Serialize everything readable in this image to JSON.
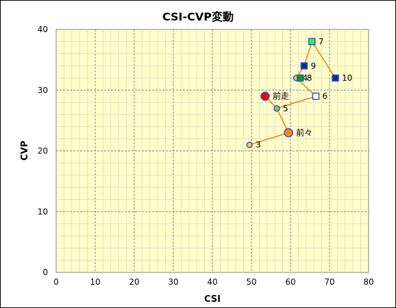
{
  "chart_data": {
    "type": "scatter",
    "title": "CSI-CVP変動",
    "xlabel": "CSI",
    "ylabel": "CVP",
    "xlim": [
      0,
      80
    ],
    "ylim": [
      0,
      40
    ],
    "x_ticks": [
      0,
      10,
      20,
      30,
      40,
      50,
      60,
      70,
      80
    ],
    "y_ticks": [
      0,
      10,
      20,
      30,
      40
    ],
    "grid": true,
    "plot_background": "#ffffcc",
    "path_color": "#f08000",
    "points": [
      {
        "label": "3",
        "x": 49.5,
        "y": 21.0,
        "shape": "circle",
        "size": "small",
        "fill": "#ffcc33",
        "stroke": "#3355cc"
      },
      {
        "label": "前々",
        "x": 59.5,
        "y": 23.0,
        "shape": "circle",
        "size": "large",
        "fill": "#ff8800",
        "stroke": "#3355cc"
      },
      {
        "label": "前走",
        "x": 53.5,
        "y": 29.0,
        "shape": "circle",
        "size": "large",
        "fill": "#ff0000",
        "stroke": "#3355cc"
      },
      {
        "label": "5",
        "x": 56.5,
        "y": 27.0,
        "shape": "circle",
        "size": "small",
        "fill": "#99cc33",
        "stroke": "#3355cc"
      },
      {
        "label": "6",
        "x": 66.5,
        "y": 29.0,
        "shape": "square",
        "fill": "#ffffff",
        "stroke": "#3355cc"
      },
      {
        "label": "4",
        "x": 61.5,
        "y": 32.0,
        "shape": "circle",
        "size": "small",
        "fill": "#ffcc33",
        "stroke": "#3355cc"
      },
      {
        "label": "8",
        "x": 62.5,
        "y": 32.0,
        "shape": "square",
        "fill": "#009933",
        "stroke": "#3355cc"
      },
      {
        "label": "9",
        "x": 63.5,
        "y": 34.0,
        "shape": "square",
        "fill": "#003399",
        "stroke": "#3355cc"
      },
      {
        "label": "7",
        "x": 65.5,
        "y": 38.0,
        "shape": "square",
        "fill": "#33ff33",
        "stroke": "#3355cc"
      },
      {
        "label": "10",
        "x": 71.5,
        "y": 32.0,
        "shape": "square",
        "fill": "#003399",
        "stroke": "#3355cc"
      }
    ],
    "path_order": [
      "3",
      "前々",
      "5",
      "前走",
      "5",
      "6",
      "4",
      "9",
      "7",
      "10"
    ]
  }
}
